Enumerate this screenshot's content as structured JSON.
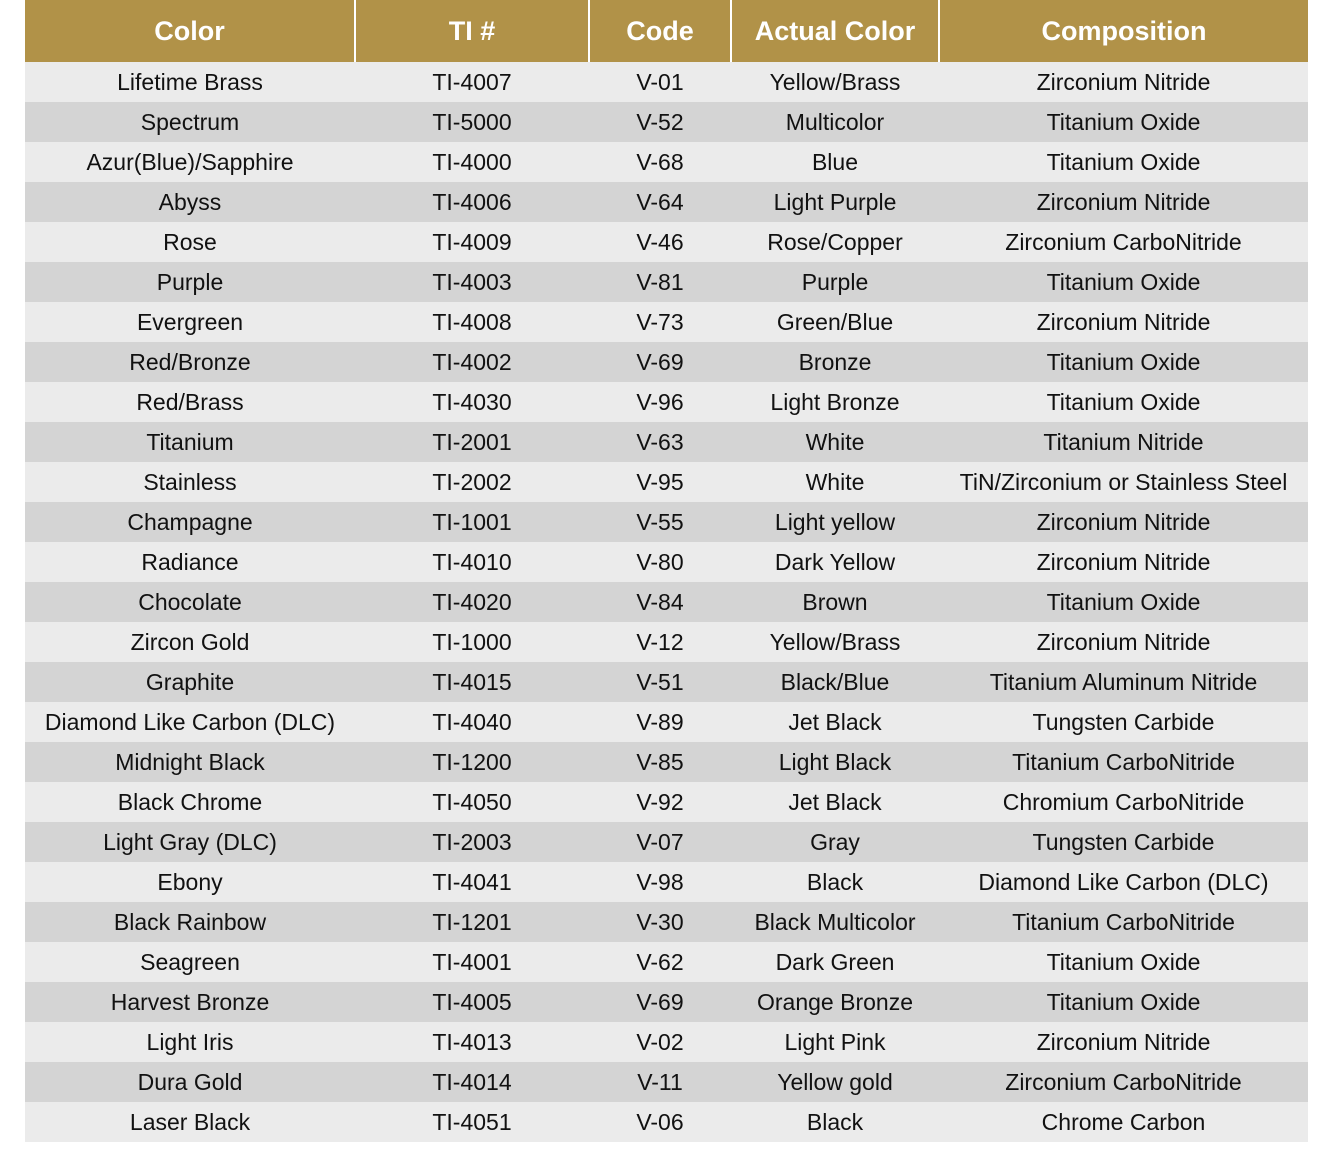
{
  "colors": {
    "header_bg": "#b19248",
    "header_text": "#ffffff",
    "row_light": "#ebebeb",
    "row_dark": "#d4d4d4",
    "text": "#111111"
  },
  "table": {
    "headers": [
      "Color",
      "TI #",
      "Code",
      "Actual Color",
      "Composition"
    ],
    "rows": [
      [
        "Lifetime Brass",
        "TI-4007",
        "V-01",
        "Yellow/Brass",
        "Zirconium Nitride"
      ],
      [
        "Spectrum",
        "TI-5000",
        "V-52",
        "Multicolor",
        "Titanium Oxide"
      ],
      [
        "Azur(Blue)/Sapphire",
        "TI-4000",
        "V-68",
        "Blue",
        "Titanium Oxide"
      ],
      [
        "Abyss",
        "TI-4006",
        "V-64",
        "Light Purple",
        "Zirconium Nitride"
      ],
      [
        "Rose",
        "TI-4009",
        "V-46",
        "Rose/Copper",
        "Zirconium CarboNitride"
      ],
      [
        "Purple",
        "TI-4003",
        "V-81",
        "Purple",
        "Titanium Oxide"
      ],
      [
        "Evergreen",
        "TI-4008",
        "V-73",
        "Green/Blue",
        "Zirconium Nitride"
      ],
      [
        "Red/Bronze",
        "TI-4002",
        "V-69",
        "Bronze",
        "Titanium Oxide"
      ],
      [
        "Red/Brass",
        "TI-4030",
        "V-96",
        "Light Bronze",
        "Titanium Oxide"
      ],
      [
        "Titanium",
        "TI-2001",
        "V-63",
        "White",
        "Titanium Nitride"
      ],
      [
        "Stainless",
        "TI-2002",
        "V-95",
        "White",
        "TiN/Zirconium or Stainless Steel"
      ],
      [
        "Champagne",
        "TI-1001",
        "V-55",
        "Light yellow",
        "Zirconium Nitride"
      ],
      [
        "Radiance",
        "TI-4010",
        "V-80",
        "Dark Yellow",
        "Zirconium Nitride"
      ],
      [
        "Chocolate",
        "TI-4020",
        "V-84",
        "Brown",
        "Titanium Oxide"
      ],
      [
        "Zircon Gold",
        "TI-1000",
        "V-12",
        "Yellow/Brass",
        "Zirconium Nitride"
      ],
      [
        "Graphite",
        "TI-4015",
        "V-51",
        "Black/Blue",
        "Titanium Aluminum Nitride"
      ],
      [
        "Diamond Like Carbon (DLC)",
        "TI-4040",
        "V-89",
        "Jet Black",
        "Tungsten Carbide"
      ],
      [
        "Midnight Black",
        "TI-1200",
        "V-85",
        "Light Black",
        "Titanium CarboNitride"
      ],
      [
        "Black Chrome",
        "TI-4050",
        "V-92",
        "Jet Black",
        "Chromium CarboNitride"
      ],
      [
        "Light Gray (DLC)",
        "TI-2003",
        "V-07",
        "Gray",
        "Tungsten Carbide"
      ],
      [
        "Ebony",
        "TI-4041",
        "V-98",
        "Black",
        "Diamond Like Carbon (DLC)"
      ],
      [
        "Black Rainbow",
        "TI-1201",
        "V-30",
        "Black Multicolor",
        "Titanium CarboNitride"
      ],
      [
        "Seagreen",
        "TI-4001",
        "V-62",
        "Dark Green",
        "Titanium Oxide"
      ],
      [
        "Harvest Bronze",
        "TI-4005",
        "V-69",
        "Orange Bronze",
        "Titanium Oxide"
      ],
      [
        "Light Iris",
        "TI-4013",
        "V-02",
        "Light Pink",
        "Zirconium Nitride"
      ],
      [
        "Dura Gold",
        "TI-4014",
        "V-11",
        "Yellow gold",
        "Zirconium CarboNitride"
      ],
      [
        "Laser Black",
        "TI-4051",
        "V-06",
        "Black",
        "Chrome Carbon"
      ]
    ]
  }
}
